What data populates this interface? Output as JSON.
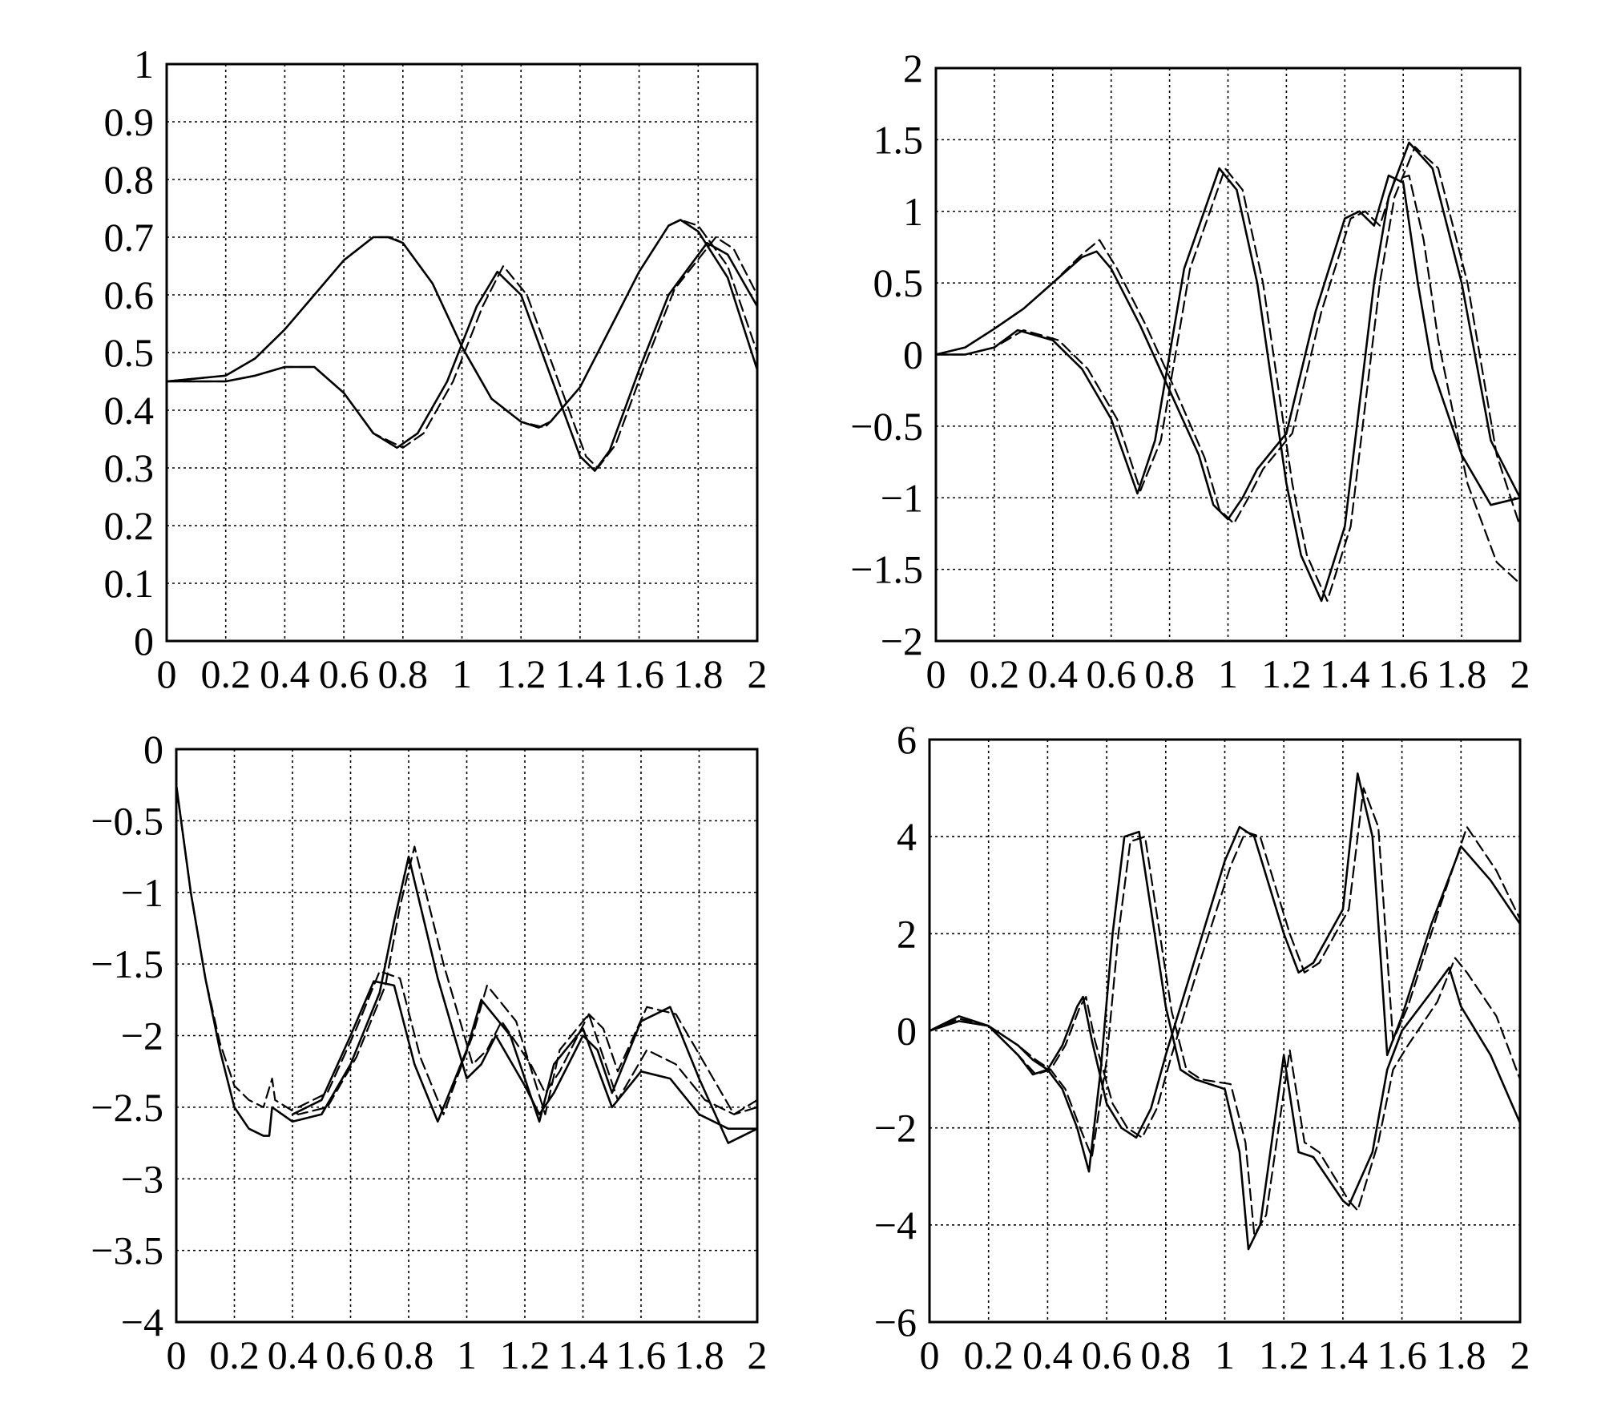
{
  "chart_data": [
    {
      "type": "line",
      "panel": "top-left",
      "title": "",
      "xlabel": "",
      "ylabel": "",
      "xlim": [
        0,
        2
      ],
      "ylim": [
        0,
        1
      ],
      "grid": true,
      "xticks": [
        "0",
        "0.2",
        "0.4",
        "0.6",
        "0.8",
        "1",
        "1.2",
        "1.4",
        "1.6",
        "1.8",
        "2"
      ],
      "yticks": [
        "0",
        "0.1",
        "0.2",
        "0.3",
        "0.4",
        "0.5",
        "0.6",
        "0.7",
        "0.8",
        "0.9",
        "1"
      ],
      "series": [
        {
          "style": "solid",
          "x": [
            0,
            0.2,
            0.3,
            0.4,
            0.5,
            0.6,
            0.7,
            0.75,
            0.8,
            0.9,
            1.0,
            1.1,
            1.2,
            1.26,
            1.3,
            1.4,
            1.5,
            1.6,
            1.7,
            1.74,
            1.8,
            1.9,
            2.0
          ],
          "y": [
            0.45,
            0.46,
            0.49,
            0.54,
            0.6,
            0.66,
            0.7,
            0.7,
            0.69,
            0.62,
            0.51,
            0.42,
            0.38,
            0.37,
            0.38,
            0.44,
            0.54,
            0.64,
            0.72,
            0.73,
            0.71,
            0.63,
            0.47
          ]
        },
        {
          "style": "dashed",
          "x": [
            0,
            0.2,
            0.3,
            0.4,
            0.5,
            0.6,
            0.7,
            0.76,
            0.8,
            0.9,
            1.0,
            1.1,
            1.2,
            1.28,
            1.3,
            1.4,
            1.5,
            1.6,
            1.7,
            1.74,
            1.8,
            1.9,
            2.0
          ],
          "y": [
            0.45,
            0.46,
            0.49,
            0.54,
            0.6,
            0.66,
            0.7,
            0.7,
            0.69,
            0.62,
            0.51,
            0.42,
            0.38,
            0.37,
            0.38,
            0.44,
            0.54,
            0.64,
            0.72,
            0.73,
            0.72,
            0.65,
            0.5
          ]
        },
        {
          "style": "solid",
          "x": [
            0,
            0.2,
            0.3,
            0.4,
            0.5,
            0.6,
            0.7,
            0.78,
            0.85,
            0.95,
            1.05,
            1.12,
            1.2,
            1.3,
            1.4,
            1.45,
            1.5,
            1.6,
            1.7,
            1.83,
            1.9,
            2.0
          ],
          "y": [
            0.45,
            0.45,
            0.46,
            0.475,
            0.475,
            0.43,
            0.36,
            0.335,
            0.36,
            0.45,
            0.58,
            0.64,
            0.6,
            0.46,
            0.32,
            0.295,
            0.33,
            0.47,
            0.6,
            0.69,
            0.67,
            0.58
          ]
        },
        {
          "style": "dashed",
          "x": [
            0,
            0.2,
            0.3,
            0.4,
            0.5,
            0.6,
            0.7,
            0.8,
            0.87,
            0.97,
            1.07,
            1.14,
            1.22,
            1.32,
            1.42,
            1.46,
            1.52,
            1.62,
            1.72,
            1.86,
            1.92,
            2.0
          ],
          "y": [
            0.45,
            0.45,
            0.46,
            0.475,
            0.475,
            0.43,
            0.36,
            0.335,
            0.36,
            0.45,
            0.58,
            0.65,
            0.6,
            0.46,
            0.32,
            0.3,
            0.34,
            0.48,
            0.61,
            0.7,
            0.68,
            0.6
          ]
        }
      ]
    },
    {
      "type": "line",
      "panel": "top-right",
      "title": "",
      "xlabel": "",
      "ylabel": "",
      "xlim": [
        0,
        2
      ],
      "ylim": [
        -2,
        2
      ],
      "grid": true,
      "xticks": [
        "0",
        "0.2",
        "0.4",
        "0.6",
        "0.8",
        "1",
        "1.2",
        "1.4",
        "1.6",
        "1.8",
        "2"
      ],
      "yticks": [
        "−2",
        "−1.5",
        "−1",
        "−0.5",
        "0",
        "0.5",
        "1",
        "1.5",
        "2"
      ],
      "series": [
        {
          "style": "solid",
          "x": [
            0,
            0.1,
            0.2,
            0.3,
            0.4,
            0.5,
            0.55,
            0.6,
            0.7,
            0.8,
            0.9,
            0.95,
            1.0,
            1.05,
            1.1,
            1.2,
            1.3,
            1.4,
            1.45,
            1.5,
            1.55,
            1.6,
            1.65,
            1.7,
            1.8,
            1.9,
            2.0
          ],
          "y": [
            0,
            0.05,
            0.18,
            0.32,
            0.5,
            0.68,
            0.72,
            0.6,
            0.2,
            -0.25,
            -0.7,
            -1.05,
            -1.15,
            -1.0,
            -0.8,
            -0.55,
            0.3,
            0.95,
            1.0,
            0.9,
            1.25,
            1.2,
            0.5,
            -0.1,
            -0.7,
            -1.05,
            -1.0
          ]
        },
        {
          "style": "dashed",
          "x": [
            0,
            0.1,
            0.2,
            0.3,
            0.4,
            0.5,
            0.56,
            0.62,
            0.72,
            0.82,
            0.92,
            0.97,
            1.02,
            1.07,
            1.12,
            1.22,
            1.32,
            1.42,
            1.47,
            1.52,
            1.57,
            1.62,
            1.67,
            1.72,
            1.82,
            1.92,
            2.0
          ],
          "y": [
            0,
            0.05,
            0.18,
            0.32,
            0.5,
            0.7,
            0.8,
            0.6,
            0.2,
            -0.25,
            -0.72,
            -1.08,
            -1.18,
            -1.0,
            -0.8,
            -0.55,
            0.3,
            0.95,
            1.0,
            0.9,
            1.22,
            1.25,
            0.8,
            0.1,
            -0.9,
            -1.45,
            -1.6
          ]
        },
        {
          "style": "solid",
          "x": [
            0,
            0.1,
            0.2,
            0.28,
            0.4,
            0.5,
            0.6,
            0.69,
            0.75,
            0.85,
            0.97,
            1.03,
            1.1,
            1.2,
            1.25,
            1.32,
            1.4,
            1.5,
            1.55,
            1.62,
            1.7,
            1.8,
            1.9,
            2.0
          ],
          "y": [
            0,
            0.0,
            0.05,
            0.17,
            0.1,
            -0.1,
            -0.45,
            -0.97,
            -0.6,
            0.6,
            1.3,
            1.15,
            0.5,
            -0.9,
            -1.4,
            -1.72,
            -1.2,
            0.5,
            1.1,
            1.48,
            1.3,
            0.5,
            -0.6,
            -1.0
          ]
        },
        {
          "style": "dashed",
          "x": [
            0,
            0.1,
            0.2,
            0.3,
            0.42,
            0.52,
            0.62,
            0.7,
            0.77,
            0.87,
            0.99,
            1.05,
            1.12,
            1.22,
            1.27,
            1.34,
            1.42,
            1.52,
            1.57,
            1.64,
            1.72,
            1.82,
            1.92,
            2.0
          ],
          "y": [
            0,
            0.0,
            0.05,
            0.17,
            0.1,
            -0.1,
            -0.45,
            -0.95,
            -0.6,
            0.6,
            1.3,
            1.15,
            0.5,
            -0.9,
            -1.4,
            -1.72,
            -1.2,
            0.5,
            1.1,
            1.45,
            1.3,
            0.5,
            -0.7,
            -1.2
          ]
        }
      ]
    },
    {
      "type": "line",
      "panel": "bottom-left",
      "title": "",
      "xlabel": "",
      "ylabel": "",
      "xlim": [
        0,
        2
      ],
      "ylim": [
        -4,
        0
      ],
      "grid": true,
      "xticks": [
        "0",
        "0.2",
        "0.4",
        "0.6",
        "0.8",
        "1",
        "1.2",
        "1.4",
        "1.6",
        "1.8",
        "2"
      ],
      "yticks": [
        "−4",
        "−3.5",
        "−3",
        "−2.5",
        "−2",
        "−1.5",
        "−1",
        "−0.5",
        "0"
      ],
      "series": [
        {
          "style": "solid",
          "x": [
            0,
            0.05,
            0.1,
            0.15,
            0.2,
            0.25,
            0.3,
            0.32,
            0.33,
            0.4,
            0.5,
            0.6,
            0.7,
            0.75,
            0.8,
            0.9,
            1.0,
            1.05,
            1.1,
            1.2,
            1.25,
            1.3,
            1.4,
            1.45,
            1.5,
            1.6,
            1.7,
            1.8,
            1.9,
            2.0
          ],
          "y": [
            -0.25,
            -1.0,
            -1.6,
            -2.1,
            -2.5,
            -2.65,
            -2.7,
            -2.7,
            -2.5,
            -2.6,
            -2.55,
            -2.2,
            -1.7,
            -1.2,
            -0.75,
            -1.6,
            -2.3,
            -2.2,
            -2.0,
            -2.35,
            -2.55,
            -2.4,
            -2.0,
            -2.1,
            -2.4,
            -1.9,
            -1.8,
            -2.3,
            -2.75,
            -2.65
          ]
        },
        {
          "style": "dashed",
          "x": [
            0,
            0.05,
            0.1,
            0.15,
            0.2,
            0.25,
            0.3,
            0.33,
            0.34,
            0.42,
            0.52,
            0.62,
            0.72,
            0.77,
            0.82,
            0.92,
            1.02,
            1.07,
            1.12,
            1.22,
            1.27,
            1.32,
            1.42,
            1.47,
            1.52,
            1.62,
            1.72,
            1.82,
            1.92,
            2.0
          ],
          "y": [
            -0.25,
            -1.0,
            -1.6,
            -2.05,
            -2.35,
            -2.45,
            -2.5,
            -2.3,
            -2.45,
            -2.55,
            -2.5,
            -2.15,
            -1.65,
            -1.1,
            -0.68,
            -1.5,
            -2.2,
            -2.1,
            -1.9,
            -2.2,
            -2.4,
            -2.25,
            -1.85,
            -1.95,
            -2.25,
            -1.8,
            -1.85,
            -2.2,
            -2.55,
            -2.45
          ]
        },
        {
          "style": "solid",
          "x": [
            0.4,
            0.5,
            0.6,
            0.68,
            0.75,
            0.82,
            0.9,
            1.0,
            1.05,
            1.15,
            1.25,
            1.3,
            1.4,
            1.5,
            1.6,
            1.7,
            1.8,
            1.9,
            2.0
          ],
          "y": [
            -2.55,
            -2.45,
            -2.0,
            -1.62,
            -1.65,
            -2.2,
            -2.6,
            -2.1,
            -1.75,
            -2.0,
            -2.6,
            -2.2,
            -1.95,
            -2.5,
            -2.25,
            -2.3,
            -2.55,
            -2.65,
            -2.65
          ]
        },
        {
          "style": "dashed",
          "x": [
            0.42,
            0.52,
            0.62,
            0.7,
            0.77,
            0.84,
            0.92,
            1.02,
            1.07,
            1.17,
            1.27,
            1.32,
            1.42,
            1.52,
            1.62,
            1.72,
            1.82,
            1.92,
            2.0
          ],
          "y": [
            -2.5,
            -2.4,
            -1.95,
            -1.55,
            -1.6,
            -2.15,
            -2.55,
            -2.0,
            -1.65,
            -1.9,
            -2.55,
            -2.1,
            -1.85,
            -2.45,
            -2.1,
            -2.2,
            -2.45,
            -2.55,
            -2.5
          ]
        }
      ]
    },
    {
      "type": "line",
      "panel": "bottom-right",
      "title": "",
      "xlabel": "",
      "ylabel": "",
      "xlim": [
        0,
        2
      ],
      "ylim": [
        -6,
        6
      ],
      "grid": true,
      "xticks": [
        "0",
        "0.2",
        "0.4",
        "0.6",
        "0.8",
        "1",
        "1.2",
        "1.4",
        "1.6",
        "1.8",
        "2"
      ],
      "yticks": [
        "−6",
        "−4",
        "−2",
        "0",
        "2",
        "4",
        "6"
      ],
      "series": [
        {
          "style": "solid",
          "x": [
            0,
            0.1,
            0.2,
            0.3,
            0.35,
            0.4,
            0.45,
            0.5,
            0.52,
            0.55,
            0.6,
            0.65,
            0.7,
            0.75,
            0.8,
            0.9,
            1.0,
            1.05,
            1.1,
            1.2,
            1.25,
            1.3,
            1.4,
            1.45,
            1.5,
            1.55,
            1.6,
            1.7,
            1.8,
            1.9,
            2.0
          ],
          "y": [
            0,
            0.3,
            0.1,
            -0.5,
            -0.9,
            -0.8,
            -0.3,
            0.5,
            0.7,
            -0.2,
            -1.5,
            -2.0,
            -2.2,
            -1.6,
            -0.5,
            1.5,
            3.5,
            4.2,
            4.0,
            2.0,
            1.2,
            1.4,
            2.5,
            5.3,
            4.0,
            -0.5,
            0.3,
            2.2,
            3.8,
            3.1,
            2.2
          ]
        },
        {
          "style": "dashed",
          "x": [
            0,
            0.1,
            0.2,
            0.3,
            0.36,
            0.41,
            0.46,
            0.51,
            0.53,
            0.56,
            0.62,
            0.67,
            0.72,
            0.77,
            0.82,
            0.92,
            1.02,
            1.07,
            1.12,
            1.22,
            1.27,
            1.32,
            1.42,
            1.47,
            1.52,
            1.57,
            1.62,
            1.72,
            1.82,
            1.92,
            2.0
          ],
          "y": [
            0,
            0.25,
            0.1,
            -0.5,
            -0.9,
            -0.8,
            -0.3,
            0.5,
            0.7,
            -0.2,
            -1.5,
            -2.0,
            -2.2,
            -1.6,
            -0.5,
            1.5,
            3.4,
            4.1,
            4.0,
            2.0,
            1.2,
            1.4,
            2.5,
            5.0,
            4.2,
            -0.2,
            0.5,
            2.4,
            4.2,
            3.3,
            2.3
          ]
        },
        {
          "style": "solid",
          "x": [
            0,
            0.1,
            0.2,
            0.3,
            0.35,
            0.4,
            0.45,
            0.5,
            0.54,
            0.58,
            0.62,
            0.66,
            0.71,
            0.75,
            0.8,
            0.85,
            0.9,
            1.0,
            1.05,
            1.08,
            1.12,
            1.2,
            1.25,
            1.3,
            1.4,
            1.42,
            1.5,
            1.55,
            1.6,
            1.7,
            1.76,
            1.8,
            1.9,
            2.0
          ],
          "y": [
            0,
            0.2,
            0.1,
            -0.3,
            -0.6,
            -0.8,
            -1.2,
            -2.0,
            -2.9,
            -0.8,
            2.0,
            4.0,
            4.1,
            2.5,
            0.5,
            -0.8,
            -1.0,
            -1.2,
            -2.5,
            -4.5,
            -4.0,
            -0.5,
            -2.5,
            -2.6,
            -3.5,
            -3.6,
            -2.5,
            -0.8,
            0.0,
            0.8,
            1.3,
            0.5,
            -0.5,
            -1.9
          ]
        },
        {
          "style": "dashed",
          "x": [
            0,
            0.1,
            0.2,
            0.3,
            0.36,
            0.41,
            0.46,
            0.51,
            0.55,
            0.6,
            0.64,
            0.68,
            0.73,
            0.77,
            0.82,
            0.87,
            0.92,
            1.02,
            1.07,
            1.1,
            1.14,
            1.22,
            1.27,
            1.32,
            1.42,
            1.45,
            1.52,
            1.57,
            1.62,
            1.72,
            1.78,
            1.82,
            1.92,
            2.0
          ],
          "y": [
            0,
            0.2,
            0.1,
            -0.3,
            -0.6,
            -0.8,
            -1.2,
            -2.0,
            -2.6,
            -0.6,
            2.0,
            3.9,
            4.0,
            2.4,
            0.4,
            -0.8,
            -1.0,
            -1.1,
            -2.3,
            -4.2,
            -3.8,
            -0.4,
            -2.3,
            -2.5,
            -3.5,
            -3.7,
            -2.3,
            -0.8,
            -0.3,
            0.6,
            1.5,
            1.2,
            0.3,
            -1.0
          ]
        }
      ]
    }
  ]
}
